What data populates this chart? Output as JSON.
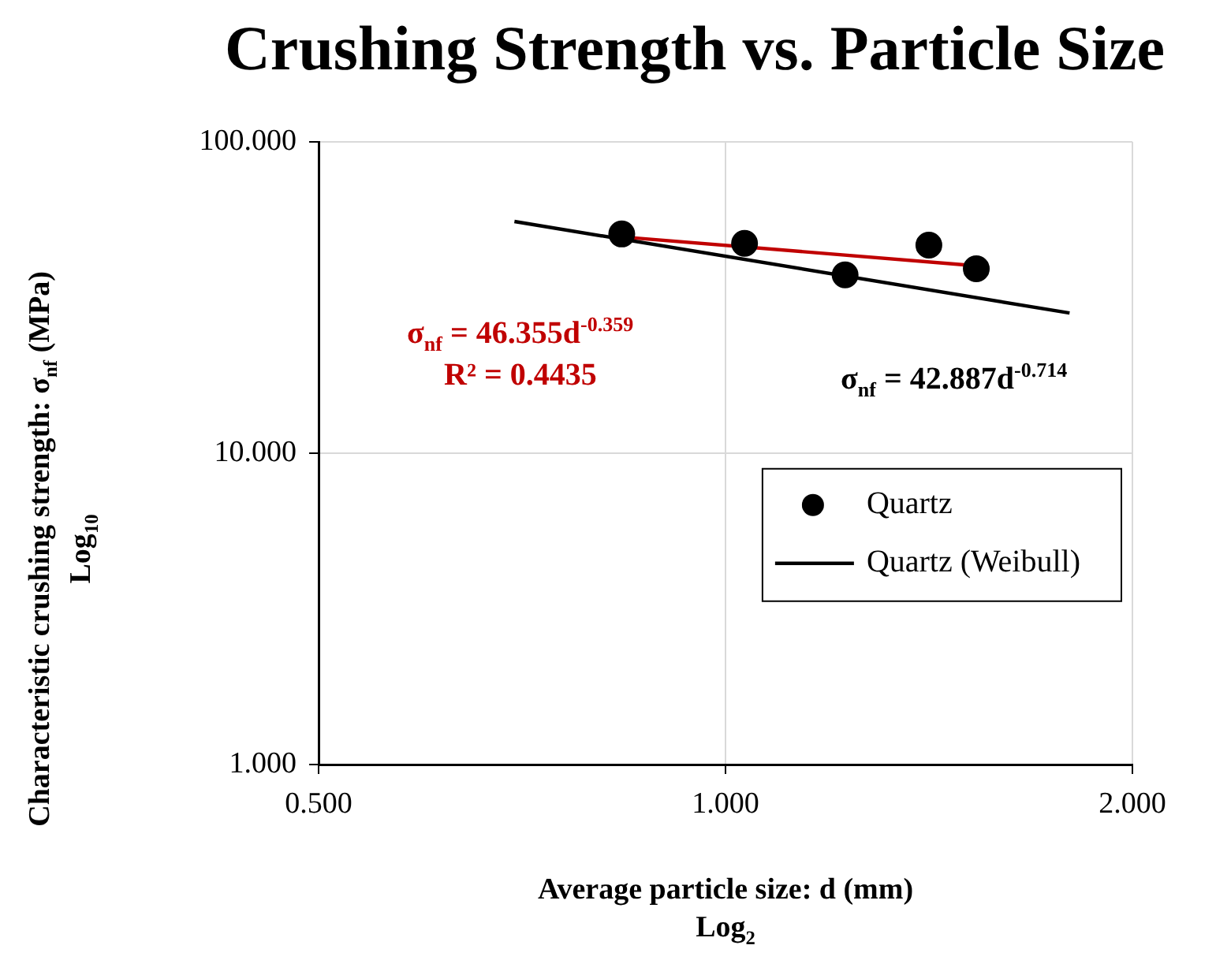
{
  "chart_data": {
    "type": "scatter",
    "title": "Crushing Strength vs. Particle Size",
    "xlabel": "Average particle size: d (mm)\nLog$_{2}$",
    "ylabel": "Characteristic crushing strength: σ$_{nf}$ (MPa)\nLog$_{10}$",
    "log": "xy",
    "xlim": [
      0.5,
      2
    ],
    "ylim": [
      1,
      100
    ],
    "xticks": [
      {
        "value": 0.5,
        "label": "0.500"
      },
      {
        "value": 1,
        "label": "1.000"
      },
      {
        "value": 2,
        "label": "2.000"
      }
    ],
    "yticks": [
      {
        "value": 1,
        "label": "1.000"
      },
      {
        "value": 10,
        "label": "10.000"
      },
      {
        "value": 100,
        "label": "100.000"
      }
    ],
    "grid": true,
    "legend": "bottom right",
    "series": [
      {
        "name": "Quartz",
        "color": "#000000",
        "type": "scatter",
        "marker": "circle",
        "x": [
          0.838,
          1.033,
          1.226,
          1.414,
          1.533
        ],
        "values": [
          50.6,
          47.2,
          37.4,
          46.6,
          39.1
        ]
      },
      {
        "name": "Quartz (Weibull)",
        "color": "#000000",
        "type": "line",
        "marker": "none",
        "x": [
          0.698,
          1.797
        ],
        "values": [
          55.5,
          28.2
        ]
      },
      {
        "color": "#c00000",
        "type": "line",
        "marker": "none",
        "x": [
          0.838,
          1.533
        ],
        "values": [
          49.5,
          40
        ]
      }
    ],
    "annotations": [
      "σ$_{nf}$ = 46.355d$^{-0.359}$",
      "R² = 0.4435",
      "σ$_{nf}$ = 42.887d$^{-0.714}$"
    ]
  }
}
